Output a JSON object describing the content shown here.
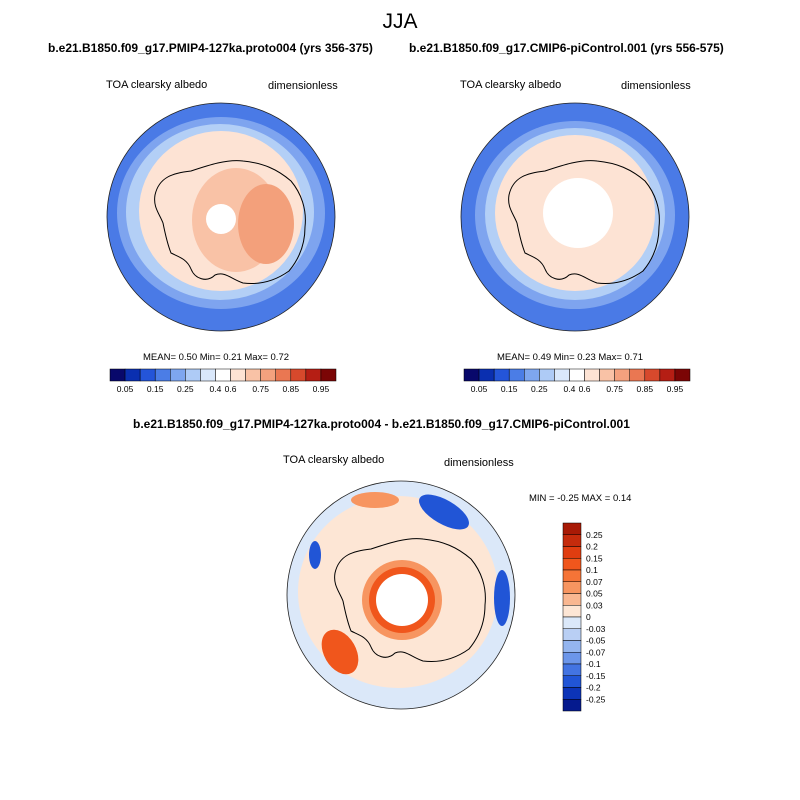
{
  "season": "JJA",
  "panels": [
    {
      "title": "b.e21.B1850.f09_g17.PMIP4-127ka.proto004 (yrs 356-375)",
      "variable": "TOA clearsky albedo",
      "units": "dimensionless",
      "stats": "MEAN=  0.50  Min=  0.21  Max=  0.72"
    },
    {
      "title": "b.e21.B1850.f09_g17.CMIP6-piControl.001 (yrs 556-575)",
      "variable": "TOA clearsky albedo",
      "units": "dimensionless",
      "stats": "MEAN=  0.49  Min=  0.23  Max=  0.71"
    },
    {
      "title": "b.e21.B1850.f09_g17.PMIP4-127ka.proto004 - b.e21.B1850.f09_g17.CMIP6-piControl.001",
      "variable": "TOA clearsky albedo",
      "units": "dimensionless",
      "stats": "MIN =  -0.25 MAX =   0.14"
    }
  ],
  "colorbar_abs": {
    "labels": [
      "0.05",
      "0.15",
      "0.25",
      "0.4",
      "0.6",
      "0.75",
      "0.85",
      "0.95"
    ],
    "colors": [
      "#08086b",
      "#0a2fb0",
      "#2455d9",
      "#4b7de6",
      "#7ea6ef",
      "#aecbf6",
      "#dae8fb",
      "#ffffff",
      "#fde3d4",
      "#f9c2a6",
      "#f4a17e",
      "#ea7752",
      "#d7492c",
      "#b51e14",
      "#7b0505"
    ]
  },
  "colorbar_diff": {
    "labels": [
      "0.25",
      "0.2",
      "0.15",
      "0.1",
      "0.07",
      "0.05",
      "0.03",
      "0",
      "-0.03",
      "-0.05",
      "-0.07",
      "-0.1",
      "-0.15",
      "-0.2",
      "-0.25"
    ],
    "colors": [
      "#a81a06",
      "#c52b0c",
      "#e03d10",
      "#f0561c",
      "#f57437",
      "#f79560",
      "#f9b791",
      "#fde6d5",
      "#dbe8f9",
      "#b9cff4",
      "#94b5ef",
      "#6c96ea",
      "#4374e2",
      "#2155d6",
      "#0c34b8",
      "#051a8e"
    ]
  },
  "map_colors": {
    "ocean_abs_outer": "#4a7ae6",
    "ocean_abs_mid": "#7ea4ef",
    "ocean_abs_inner": "#b3cff6",
    "ice_light": "#fde3d4",
    "ice_mid": "#f9c2a6",
    "ice_dark": "#f3a07b",
    "diff_bg": "#dbe8f9",
    "diff_ice": "#fde6d5",
    "diff_red": "#f0561c",
    "diff_salmon": "#f79560",
    "diff_blue": "#2155d6"
  }
}
